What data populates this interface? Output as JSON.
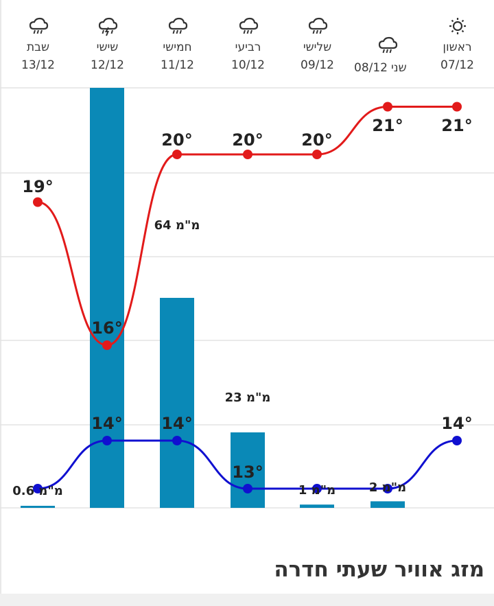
{
  "page_title": "מזג אוויר שעתי חדרה",
  "days": [
    {
      "name": "ראשון",
      "date": "07/12",
      "icon": "sun-icon"
    },
    {
      "name": "שני",
      "date": "08/12",
      "icon": "rain-icon"
    },
    {
      "name": "שלישי",
      "date": "09/12",
      "icon": "rain-icon"
    },
    {
      "name": "רביעי",
      "date": "10/12",
      "icon": "rain-icon"
    },
    {
      "name": "חמישי",
      "date": "11/12",
      "icon": "rain-icon"
    },
    {
      "name": "שישי",
      "date": "12/12",
      "icon": "thunderstorm-icon"
    },
    {
      "name": "שבת",
      "date": "13/12",
      "icon": "rain-icon"
    }
  ],
  "chart_data": {
    "type": "bar+line",
    "categories": [
      "07/12",
      "08/12",
      "09/12",
      "10/12",
      "11/12",
      "12/12",
      "13/12"
    ],
    "precip_unit": "מ\"מ",
    "series": [
      {
        "kind": "bar",
        "values": [
          0,
          2,
          1,
          23,
          64,
          128,
          0.6
        ]
      },
      {
        "kind": "line",
        "values": [
          21,
          21,
          20,
          20,
          20,
          16,
          19
        ]
      },
      {
        "kind": "line",
        "values": [
          14,
          13,
          13,
          13,
          14,
          14,
          13
        ]
      }
    ],
    "precip_labels": [
      "",
      "2 מ\"מ",
      "1 מ\"מ",
      "23 מ\"מ",
      "64 מ\"מ",
      "",
      "0.6 מ\"מ"
    ],
    "max_labels": [
      "21°",
      "21°",
      "20°",
      "20°",
      "20°",
      "16°",
      "19°"
    ],
    "min_labels": [
      "14°",
      "",
      "",
      "13°",
      "14°",
      "14°",
      ""
    ],
    "colors": {
      "bar": "#0a89b7",
      "max_line": "#e21a1a",
      "min_line": "#1010d0",
      "grid": "#e3e3e3"
    },
    "grid": true
  }
}
